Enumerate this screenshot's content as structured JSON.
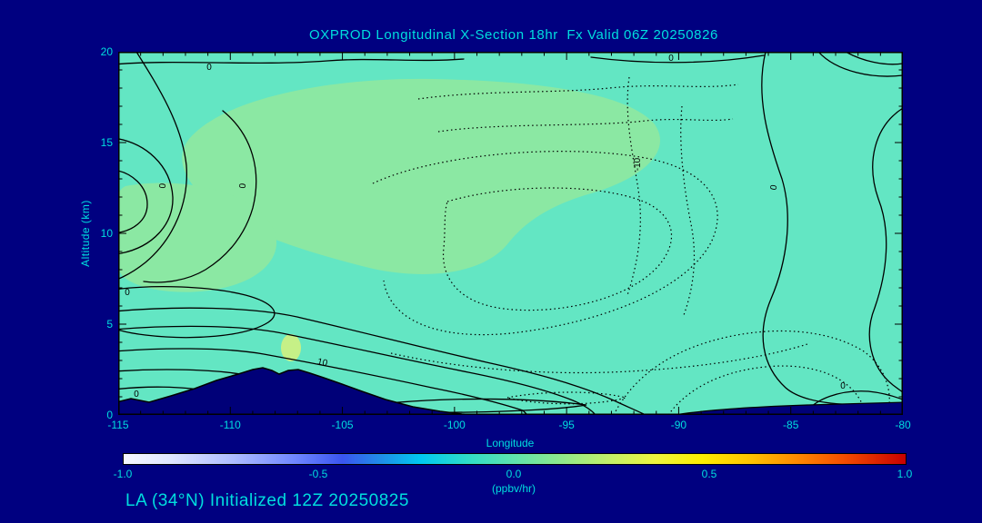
{
  "title": "OXPROD Longitudinal X-Section 18hr  Fx Valid 06Z 20250826",
  "footer": "LA (34°N) Initialized 12Z 20250825",
  "colors": {
    "background": "#000080",
    "text": "#00DEDE",
    "contour_line": "#000000",
    "fill_near_zero": "#63E6C3",
    "fill_slightly_positive": "#8BE8A3",
    "fill_positive_spot": "#C6F087",
    "terrain": "#000078"
  },
  "chart_data": {
    "type": "contour",
    "title": "OXPROD Longitudinal X-Section 18hr  Fx Valid 06Z 20250826",
    "xlabel": "Longitude",
    "ylabel": "Altitude (km)",
    "xlim": [
      -115,
      -80
    ],
    "ylim": [
      0,
      20
    ],
    "x_ticks": [
      -115,
      -110,
      -105,
      -100,
      -95,
      -90,
      -85,
      -80
    ],
    "x_tick_labels": [
      "-115",
      "-110",
      "-105",
      "-100",
      "-95",
      "-90",
      "-85",
      "-80"
    ],
    "x_minor_step": 1,
    "x_major_step": 5,
    "y_ticks": [
      0,
      5,
      10,
      15,
      20
    ],
    "y_tick_labels": [
      "0",
      "5",
      "10",
      "15",
      "20"
    ],
    "y_minor_step": 1,
    "y_major_step": 5,
    "units": "(ppbv/hr)",
    "labeled_contour_values": [
      -10,
      0,
      10
    ],
    "line_styles": {
      "positive_or_zero": "solid",
      "negative": "dotted"
    },
    "contour_labels": [
      {
        "text": "0"
      },
      {
        "text": "0"
      },
      {
        "text": "0"
      },
      {
        "text": "0"
      },
      {
        "text": "0"
      },
      {
        "text": "10"
      },
      {
        "text": "0"
      },
      {
        "text": "-10"
      },
      {
        "text": "0"
      },
      {
        "text": "0"
      }
    ],
    "field_description": "OXPROD tendency near 0 ppbv/hr (teal) over most of section; slightly positive greener region ~8-18 km between -113 and -96; strong gradient band (10 contour) 2-5 km over western terrain; dotted negative (-10) region mid-section; navy terrain silhouette peaking ~2.5 km near -108.5 and shallow rise east of -90"
  },
  "colorbar": {
    "range": [
      -1,
      1
    ],
    "ticks": [
      -1,
      -0.5,
      0,
      0.5,
      1
    ],
    "tick_labels": [
      "-1.0",
      "-0.5",
      "0.0",
      "0.5",
      "1.0"
    ],
    "units": "(ppbv/hr)",
    "gradient": [
      "#f6f7ff 0%",
      "#dfe6ff 6%",
      "#aebcff 14%",
      "#6f86ff 22%",
      "#3a55f0 28%",
      "#1f8fe8 33%",
      "#00c8f0 38%",
      "#2fdcc8 44%",
      "#5fe3ae 50%",
      "#8fe98c 56%",
      "#c2ef6a 62%",
      "#eef43f 68%",
      "#fded00 74%",
      "#ffc400 80%",
      "#ff8a00 86%",
      "#f44d00 92%",
      "#c80000 100%"
    ]
  }
}
